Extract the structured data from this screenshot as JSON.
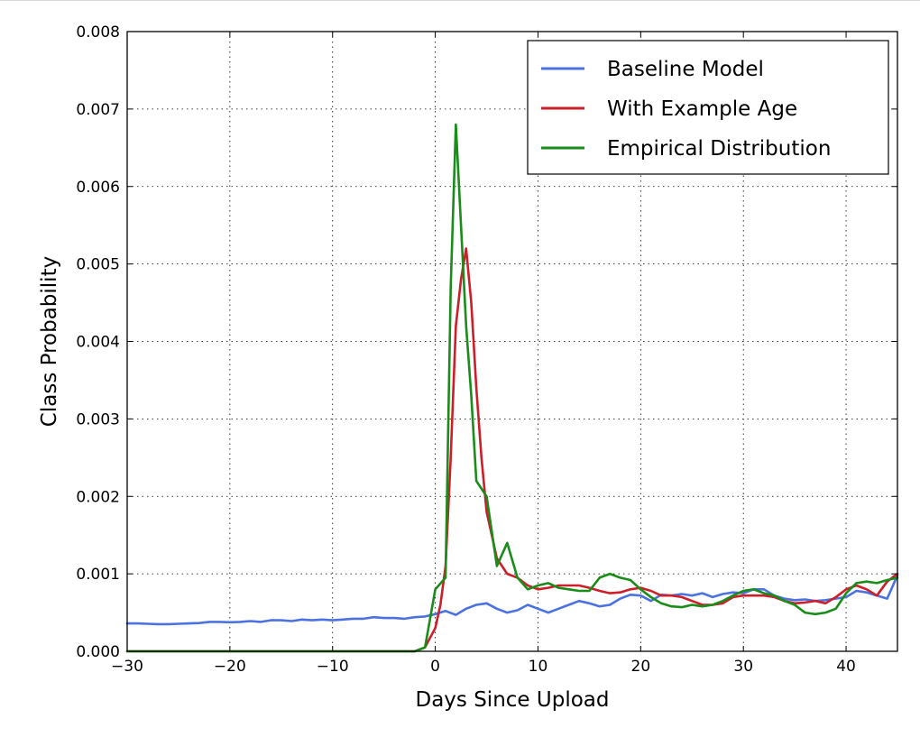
{
  "chart_data": {
    "type": "line",
    "title": "",
    "xlabel": "Days Since Upload",
    "ylabel": "Class Probability",
    "xlim": [
      -30,
      45
    ],
    "ylim": [
      0,
      0.008
    ],
    "xticks": [
      -30,
      -20,
      -10,
      0,
      10,
      20,
      30,
      40
    ],
    "xtick_labels": [
      "−30",
      "−20",
      "−10",
      "0",
      "10",
      "20",
      "30",
      "40"
    ],
    "yticks": [
      0,
      0.001,
      0.002,
      0.003,
      0.004,
      0.005,
      0.006,
      0.007,
      0.008
    ],
    "ytick_labels": [
      "0.000",
      "0.001",
      "0.002",
      "0.003",
      "0.004",
      "0.005",
      "0.006",
      "0.007",
      "0.008"
    ],
    "grid": true,
    "legend_position": "top-right",
    "series": [
      {
        "name": "Baseline Model",
        "color": "#4c72e0",
        "x": [
          -30,
          -29,
          -28,
          -27,
          -26,
          -25,
          -24,
          -23,
          -22,
          -21,
          -20,
          -19,
          -18,
          -17,
          -16,
          -15,
          -14,
          -13,
          -12,
          -11,
          -10,
          -9,
          -8,
          -7,
          -6,
          -5,
          -4,
          -3,
          -2,
          -1,
          0,
          1,
          2,
          3,
          4,
          5,
          6,
          7,
          8,
          9,
          10,
          11,
          12,
          13,
          14,
          15,
          16,
          17,
          18,
          19,
          20,
          21,
          22,
          23,
          24,
          25,
          26,
          27,
          28,
          29,
          30,
          31,
          32,
          33,
          34,
          35,
          36,
          37,
          38,
          39,
          40,
          41,
          42,
          43,
          44,
          45
        ],
        "y": [
          0.00036,
          0.00036,
          0.000355,
          0.00035,
          0.00035,
          0.000355,
          0.00036,
          0.000365,
          0.00038,
          0.00038,
          0.000375,
          0.00038,
          0.00039,
          0.00038,
          0.0004,
          0.0004,
          0.00039,
          0.00041,
          0.0004,
          0.00041,
          0.0004,
          0.00041,
          0.00042,
          0.00042,
          0.00044,
          0.00043,
          0.00043,
          0.00042,
          0.00044,
          0.00045,
          0.00048,
          0.00052,
          0.00047,
          0.00055,
          0.0006,
          0.00062,
          0.00055,
          0.0005,
          0.00053,
          0.0006,
          0.00055,
          0.0005,
          0.00055,
          0.0006,
          0.00065,
          0.00062,
          0.00058,
          0.0006,
          0.00068,
          0.00073,
          0.00072,
          0.00065,
          0.00073,
          0.00072,
          0.00074,
          0.00072,
          0.00075,
          0.0007,
          0.00074,
          0.00076,
          0.00075,
          0.0008,
          0.0008,
          0.00072,
          0.00068,
          0.00066,
          0.00067,
          0.00065,
          0.00066,
          0.00068,
          0.0007,
          0.00078,
          0.00076,
          0.00072,
          0.00068,
          0.00098
        ]
      },
      {
        "name": "With Example Age",
        "color": "#cc1f2a",
        "x": [
          -30,
          -25,
          -20,
          -15,
          -10,
          -5,
          -3,
          -2,
          -1,
          0,
          0.5,
          1,
          1.5,
          2,
          2.5,
          3,
          3.5,
          4,
          4.5,
          5,
          6,
          7,
          8,
          9,
          10,
          11,
          12,
          13,
          14,
          15,
          16,
          17,
          18,
          19,
          20,
          21,
          22,
          23,
          24,
          25,
          26,
          27,
          28,
          29,
          30,
          31,
          32,
          33,
          34,
          35,
          36,
          37,
          38,
          39,
          40,
          41,
          42,
          43,
          44,
          45
        ],
        "y": [
          0,
          0,
          0,
          0,
          0,
          0,
          0,
          0,
          5e-05,
          0.0003,
          0.0006,
          0.0011,
          0.0025,
          0.0042,
          0.0048,
          0.0052,
          0.0045,
          0.0034,
          0.0025,
          0.0018,
          0.0012,
          0.001,
          0.00095,
          0.00085,
          0.0008,
          0.00082,
          0.00085,
          0.00085,
          0.00085,
          0.00082,
          0.00078,
          0.00075,
          0.00076,
          0.0008,
          0.00082,
          0.00078,
          0.00072,
          0.00072,
          0.0007,
          0.00065,
          0.0006,
          0.0006,
          0.00062,
          0.0007,
          0.00072,
          0.00072,
          0.00072,
          0.0007,
          0.00065,
          0.00062,
          0.00063,
          0.00065,
          0.00062,
          0.0007,
          0.0008,
          0.00085,
          0.0008,
          0.00072,
          0.0009,
          0.001
        ]
      },
      {
        "name": "Empirical Distribution",
        "color": "#1a8c1a",
        "x": [
          -30,
          -25,
          -20,
          -15,
          -10,
          -5,
          -3,
          -2,
          -1,
          0,
          1,
          1.5,
          2,
          2.5,
          3,
          3.5,
          4,
          5,
          6,
          7,
          8,
          9,
          10,
          11,
          12,
          13,
          14,
          15,
          16,
          17,
          18,
          19,
          20,
          21,
          22,
          23,
          24,
          25,
          26,
          27,
          28,
          29,
          30,
          31,
          32,
          33,
          34,
          35,
          36,
          37,
          38,
          39,
          40,
          41,
          42,
          43,
          44,
          45
        ],
        "y": [
          0,
          0,
          0,
          0,
          0,
          0,
          0,
          0,
          5e-05,
          0.0008,
          0.00095,
          0.0047,
          0.0068,
          0.0055,
          0.0042,
          0.0033,
          0.0022,
          0.002,
          0.0011,
          0.0014,
          0.00095,
          0.0008,
          0.00085,
          0.00088,
          0.00082,
          0.0008,
          0.00078,
          0.00078,
          0.00095,
          0.001,
          0.00095,
          0.00092,
          0.0008,
          0.0007,
          0.00062,
          0.00058,
          0.00057,
          0.0006,
          0.00058,
          0.0006,
          0.00065,
          0.00072,
          0.00078,
          0.0008,
          0.00075,
          0.00072,
          0.00065,
          0.0006,
          0.0005,
          0.00048,
          0.0005,
          0.00055,
          0.00075,
          0.00088,
          0.0009,
          0.00088,
          0.00092,
          0.00095
        ]
      }
    ]
  }
}
